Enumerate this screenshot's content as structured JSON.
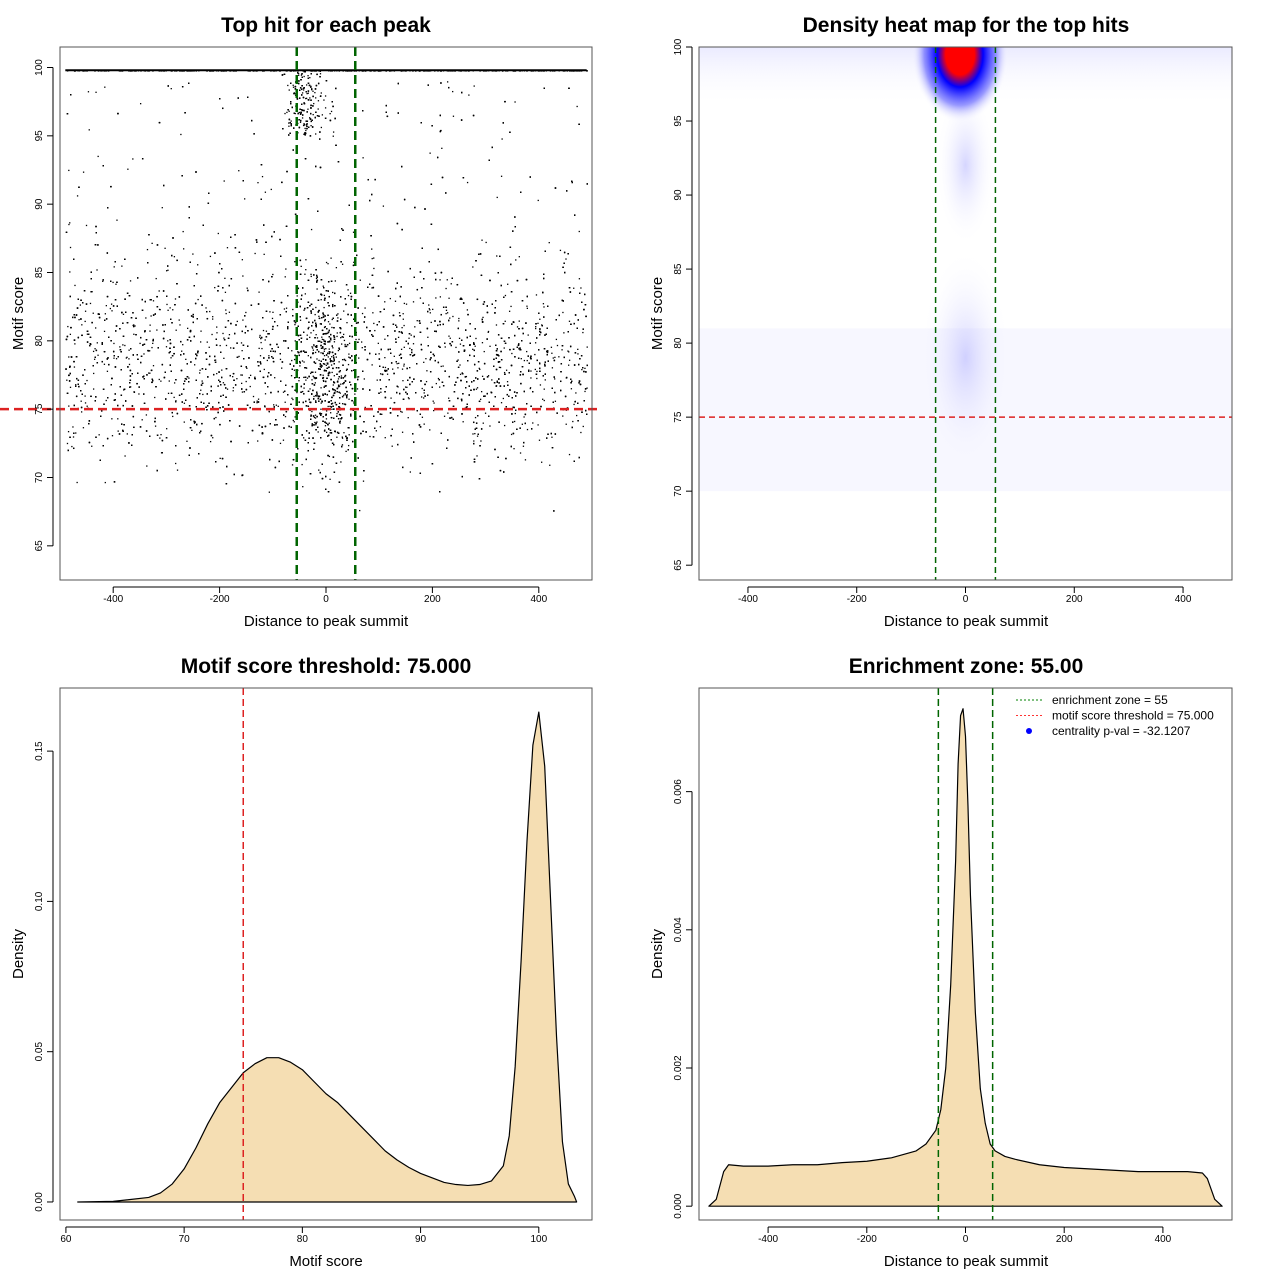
{
  "chart_data": [
    {
      "type": "scatter",
      "title": "Top hit for each peak",
      "xlabel": "Distance to peak summit",
      "ylabel": "Motif score",
      "xlim": [
        -500,
        500
      ],
      "ylim": [
        62.5,
        101.5
      ],
      "xticks": [
        -400,
        -200,
        0,
        200,
        400
      ],
      "yticks": [
        65,
        70,
        75,
        80,
        85,
        90,
        95,
        100
      ],
      "hlines": [
        {
          "y": 75,
          "color": "#dd2222",
          "style": "dashed"
        }
      ],
      "vlines": [
        {
          "x": -55,
          "color": "#006400",
          "style": "dashed"
        },
        {
          "x": 55,
          "color": "#006400",
          "style": "dashed"
        }
      ],
      "description": "Dense scatter of ~20000 points; x uniform in [-490,490], scores concentrated at ~99.8 and 75-82, with central enrichment near x=0"
    },
    {
      "type": "heatmap",
      "title": "Density heat map for the top hits",
      "xlabel": "Distance to peak summit",
      "ylabel": "Motif score",
      "xlim": [
        -490,
        490
      ],
      "ylim": [
        64,
        100
      ],
      "xticks": [
        -400,
        -200,
        0,
        200,
        400
      ],
      "yticks": [
        65,
        70,
        75,
        80,
        85,
        90,
        95,
        100
      ],
      "hotspot": {
        "x": -10,
        "y": 99.5
      },
      "secondary": {
        "x": 0,
        "y": 79
      },
      "colors": [
        "#ffffff",
        "#0000ff",
        "#ff0000"
      ],
      "hlines": [
        {
          "y": 75,
          "color": "#dd2222",
          "style": "dashed"
        }
      ],
      "vlines": [
        {
          "x": -55,
          "color": "#006400",
          "style": "dashed"
        },
        {
          "x": 55,
          "color": "#006400",
          "style": "dashed"
        }
      ]
    },
    {
      "type": "area",
      "title": "Motif score threshold: 75.000",
      "xlabel": "Motif score",
      "ylabel": "Density",
      "xlim": [
        59.5,
        104.5
      ],
      "ylim": [
        -0.006,
        0.171
      ],
      "xticks": [
        60,
        70,
        80,
        90,
        100
      ],
      "yticks": [
        0.0,
        0.05,
        0.1,
        0.15
      ],
      "ytick_labels": [
        "0.00",
        "0.05",
        "0.10",
        "0.15"
      ],
      "x": [
        61,
        64,
        67,
        68,
        69,
        70,
        71,
        72,
        73,
        74,
        75,
        76,
        77,
        78,
        79,
        80,
        81,
        82,
        83,
        84,
        85,
        86,
        87,
        88,
        89,
        90,
        91,
        92,
        93,
        94,
        95,
        96,
        97,
        97.5,
        98,
        98.5,
        99,
        99.5,
        100,
        100.5,
        101,
        101.5,
        102,
        102.5,
        103,
        103.2
      ],
      "y": [
        0,
        0.0002,
        0.0015,
        0.003,
        0.006,
        0.011,
        0.018,
        0.026,
        0.033,
        0.038,
        0.043,
        0.046,
        0.048,
        0.048,
        0.0465,
        0.044,
        0.04,
        0.036,
        0.033,
        0.029,
        0.025,
        0.021,
        0.017,
        0.014,
        0.0115,
        0.0095,
        0.008,
        0.0065,
        0.0058,
        0.0055,
        0.0058,
        0.007,
        0.012,
        0.022,
        0.045,
        0.08,
        0.12,
        0.152,
        0.163,
        0.145,
        0.1,
        0.055,
        0.02,
        0.006,
        0.002,
        0
      ],
      "fill": "#f5deb3",
      "vlines": [
        {
          "x": 75,
          "color": "#dd2222",
          "style": "dashed"
        }
      ]
    },
    {
      "type": "area",
      "title": "Enrichment zone: 55.00",
      "xlabel": "Distance to peak summit",
      "ylabel": "Density",
      "xlim": [
        -540,
        540
      ],
      "ylim": [
        -0.0002,
        0.0075
      ],
      "xticks": [
        -400,
        -200,
        0,
        200,
        400
      ],
      "yticks": [
        0.0,
        0.002,
        0.004,
        0.006
      ],
      "ytick_labels": [
        "0.000",
        "0.002",
        "0.004",
        "0.006"
      ],
      "x": [
        -520,
        -505,
        -490,
        -480,
        -450,
        -400,
        -350,
        -300,
        -250,
        -200,
        -150,
        -100,
        -80,
        -60,
        -50,
        -40,
        -30,
        -20,
        -15,
        -10,
        -5,
        0,
        5,
        10,
        20,
        30,
        40,
        50,
        60,
        80,
        100,
        150,
        200,
        250,
        300,
        350,
        400,
        450,
        480,
        490,
        505,
        520
      ],
      "y": [
        0,
        0.0001,
        0.0005,
        0.0006,
        0.00058,
        0.00058,
        0.0006,
        0.0006,
        0.00063,
        0.00065,
        0.0007,
        0.0008,
        0.0009,
        0.0011,
        0.0014,
        0.002,
        0.0032,
        0.005,
        0.0064,
        0.0071,
        0.0072,
        0.0068,
        0.0058,
        0.0045,
        0.0028,
        0.0017,
        0.0012,
        0.0009,
        0.0008,
        0.00072,
        0.00068,
        0.0006,
        0.00056,
        0.00054,
        0.00052,
        0.0005,
        0.0005,
        0.0005,
        0.00048,
        0.0004,
        0.0001,
        0
      ],
      "fill": "#f5deb3",
      "vlines": [
        {
          "x": -55,
          "color": "#006400",
          "style": "dashed"
        },
        {
          "x": 55,
          "color": "#006400",
          "style": "dashed"
        }
      ],
      "legend": {
        "position": "top-right",
        "entries": [
          {
            "label": "enrichment zone = 55",
            "color": "#008000",
            "kind": "dotted-line"
          },
          {
            "label": "motif score threshold = 75.000",
            "color": "#ff3333",
            "kind": "dotted-line"
          },
          {
            "label": "centrality p-val = -32.1207",
            "color": "#0000ff",
            "kind": "point"
          }
        ]
      }
    }
  ]
}
